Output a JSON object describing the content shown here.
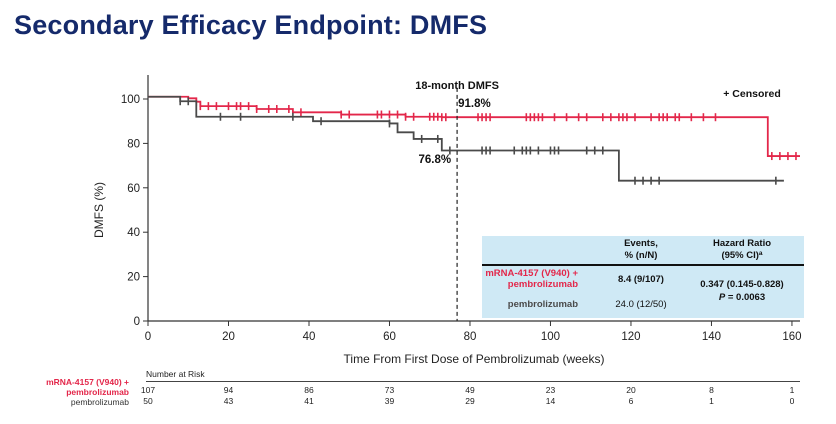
{
  "slide": {
    "title": "Secondary Efficacy Endpoint: DMFS"
  },
  "chart_data": {
    "type": "line",
    "title": "",
    "xlabel": "Time From First Dose of Pembrolizumab (weeks)",
    "ylabel": "DMFS (%)",
    "xlim": [
      0,
      162
    ],
    "ylim": [
      0,
      100
    ],
    "xticks": [
      0,
      20,
      40,
      60,
      80,
      100,
      120,
      140,
      160
    ],
    "yticks": [
      0,
      20,
      40,
      60,
      80,
      100
    ],
    "grid": false,
    "legend_text": "+ Censored",
    "colors": {
      "combo": "#e3274a",
      "mono": "#4a4a4a"
    },
    "series": [
      {
        "name": "mRNA-4157 (V940) + pembrolizumab",
        "color": "#e3274a",
        "x": [
          0,
          10,
          12,
          13,
          27,
          36,
          48,
          64,
          73,
          154,
          162
        ],
        "y": [
          101,
          100.3,
          98.8,
          96.8,
          95.5,
          94,
          93,
          92,
          91.8,
          74.3,
          74.3
        ],
        "censored": [
          12,
          13,
          15,
          17,
          20,
          22,
          23,
          25,
          27,
          30,
          32,
          35,
          38,
          48,
          50,
          57,
          58,
          60,
          62,
          64,
          66,
          70,
          71,
          72,
          73,
          74,
          82,
          83,
          84,
          85,
          94,
          95,
          96,
          97,
          98,
          101,
          104,
          107,
          109,
          113,
          115,
          117,
          118,
          119,
          121,
          125,
          127,
          128,
          129,
          131,
          132,
          135,
          138,
          141,
          155,
          157,
          159,
          161
        ]
      },
      {
        "name": "pembrolizumab",
        "color": "#4a4a4a",
        "x": [
          0,
          8,
          12,
          41,
          60,
          62,
          66,
          73,
          117,
          158
        ],
        "y": [
          101,
          99,
          92,
          90,
          89,
          85,
          82,
          76.8,
          63.2,
          63.2
        ],
        "censored": [
          8,
          10,
          18,
          23,
          36,
          43,
          60,
          68,
          72,
          75,
          83,
          84,
          85,
          91,
          93,
          94,
          95,
          97,
          100,
          101,
          102,
          109,
          111,
          113,
          121,
          123,
          125,
          127,
          156
        ]
      }
    ],
    "annotations": [
      {
        "text": "18-month DMFS",
        "x": 76.8,
        "y": 107
      },
      {
        "text": "91.8%",
        "x": 76.8,
        "y": 97.8
      },
      {
        "text": "76.8%",
        "x": 71,
        "y": 71
      }
    ],
    "reference_line": {
      "x": 76.8,
      "style": "dashed"
    },
    "table": {
      "header": {
        "events": "Events,\n% (n/N)",
        "hr": "Hazard Ratio\n(95% CI)"
      },
      "superscript": "a",
      "rows": [
        {
          "arm": "mRNA-4157 (V940) +\npembrolizumab",
          "events": "8.4 (9/107)",
          "color": "#e3274a"
        },
        {
          "arm": "pembrolizumab",
          "events": "24.0 (12/50)",
          "color": "#4a4a4a"
        }
      ],
      "hr_value": "0.347 (0.145-0.828)",
      "p_label": "P",
      "p_value": " = 0.0063",
      "background": "#cfe9f5"
    }
  },
  "risk_table": {
    "heading": "Number at Risk",
    "group1_label": "mRNA-4157 (V940) +\npembrolizumab",
    "group2_label": "pembrolizumab",
    "weeks": [
      0,
      20,
      40,
      60,
      80,
      100,
      120,
      140,
      160
    ],
    "group1": [
      "107",
      "94",
      "86",
      "73",
      "49",
      "23",
      "20",
      "8",
      "1"
    ],
    "group2": [
      "50",
      "43",
      "41",
      "39",
      "29",
      "14",
      "6",
      "1",
      "0"
    ]
  }
}
